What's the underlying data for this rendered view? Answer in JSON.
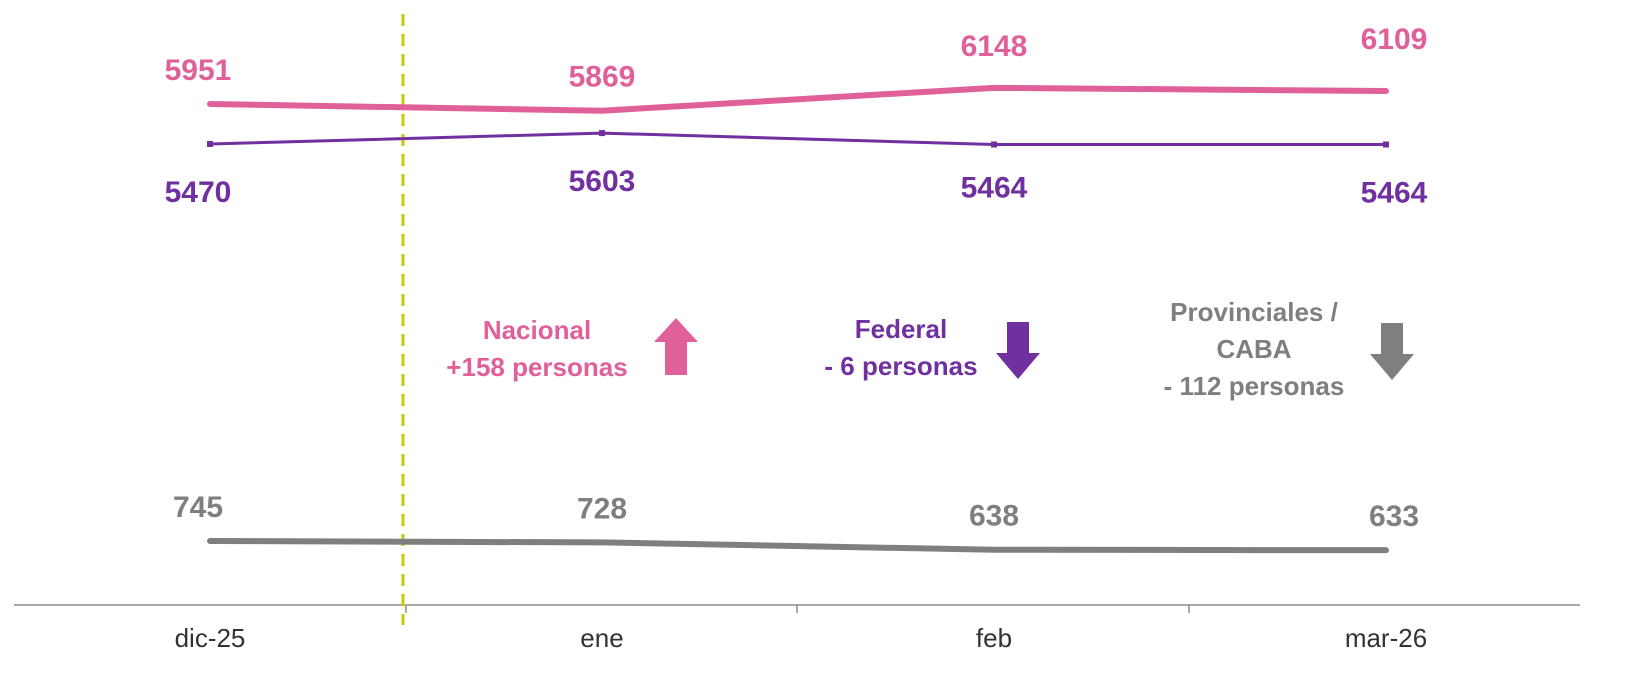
{
  "chart_data": {
    "type": "line",
    "categories": [
      "dic-25",
      "ene",
      "feb",
      "mar-26"
    ],
    "series": [
      {
        "name": "Nacional",
        "color": "#e0609a",
        "values": [
          5951,
          5869,
          6148,
          6109
        ]
      },
      {
        "name": "Federal",
        "color": "#7030a0",
        "values": [
          5470,
          5603,
          5464,
          5464
        ]
      },
      {
        "name": "Provinciales / CABA",
        "color": "#7f7f7f",
        "values": [
          745,
          728,
          638,
          633
        ]
      }
    ],
    "annotations": [
      "+158 personas",
      "- 6 personas",
      "- 112 personas"
    ]
  }
}
